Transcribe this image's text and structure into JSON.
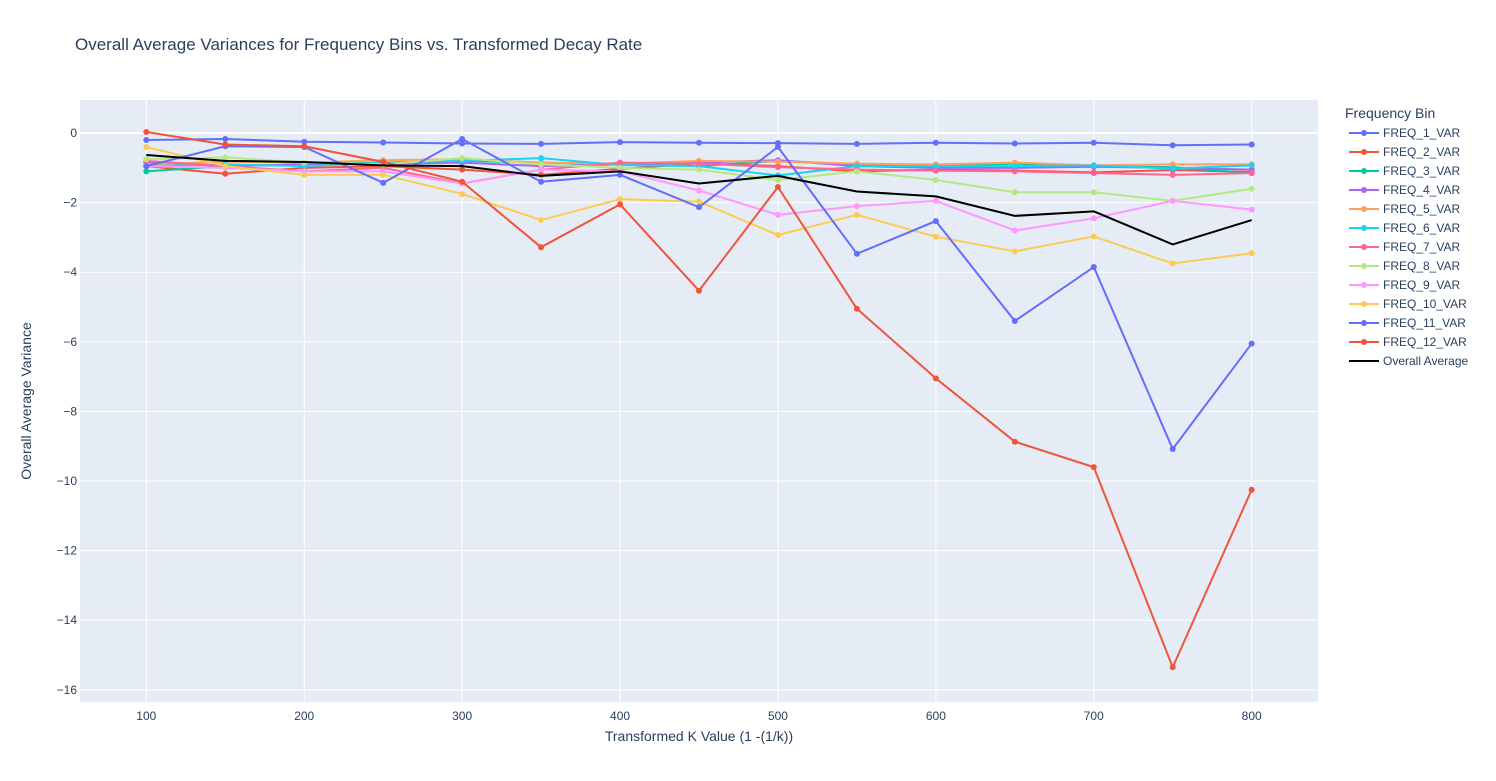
{
  "chart_data": {
    "type": "line",
    "title": "Overall Average Variances for Frequency Bins vs. Transformed Decay Rate",
    "xlabel": "Transformed K Value (1 -(1/k))",
    "ylabel": "Overall Average Variance",
    "xlim": [
      58,
      842
    ],
    "ylim": [
      -16.35,
      0.95
    ],
    "x_ticks": [
      100,
      200,
      300,
      400,
      500,
      600,
      700,
      800
    ],
    "y_ticks": [
      0,
      -2,
      -4,
      -6,
      -8,
      -10,
      -12,
      -14,
      -16
    ],
    "x_tick_labels": [
      "100",
      "200",
      "300",
      "400",
      "500",
      "600",
      "700",
      "800"
    ],
    "y_tick_labels": [
      "0",
      "−2",
      "−4",
      "−6",
      "−8",
      "−10",
      "−12",
      "−14",
      "−16"
    ],
    "grid": true,
    "legend_title": "Frequency Bin",
    "legend_position": "right",
    "x": [
      100,
      150,
      200,
      250,
      300,
      350,
      400,
      450,
      500,
      550,
      600,
      650,
      700,
      750,
      800
    ],
    "series": [
      {
        "name": "FREQ_1_VAR",
        "color": "#636efa",
        "markers": true,
        "values": [
          -0.2,
          -0.17,
          -0.25,
          -0.27,
          -0.3,
          -0.31,
          -0.26,
          -0.28,
          -0.29,
          -0.31,
          -0.28,
          -0.3,
          -0.28,
          -0.35,
          -0.33
        ]
      },
      {
        "name": "FREQ_2_VAR",
        "color": "#ef553b",
        "markers": true,
        "values": [
          -0.95,
          -1.17,
          -1.0,
          -0.95,
          -1.05,
          -1.2,
          -1.03,
          -0.87,
          -0.95,
          -1.1,
          -1.05,
          -1.08,
          -1.13,
          -1.06,
          -1.12
        ]
      },
      {
        "name": "FREQ_3_VAR",
        "color": "#00cc96",
        "markers": true,
        "values": [
          -1.1,
          -0.95,
          -0.9,
          -0.85,
          -0.8,
          -0.85,
          -0.9,
          -0.95,
          -0.8,
          -0.9,
          -0.95,
          -0.88,
          -0.95,
          -0.98,
          -1.15
        ]
      },
      {
        "name": "FREQ_4_VAR",
        "color": "#ab63fa",
        "markers": true,
        "values": [
          -0.85,
          -0.95,
          -0.9,
          -0.88,
          -0.85,
          -0.95,
          -0.9,
          -0.85,
          -0.78,
          -0.95,
          -1.0,
          -1.0,
          -0.97,
          -1.0,
          -1.05
        ]
      },
      {
        "name": "FREQ_5_VAR",
        "color": "#ffa15a",
        "markers": true,
        "values": [
          -0.9,
          -0.82,
          -0.85,
          -0.78,
          -0.75,
          -0.85,
          -0.88,
          -0.8,
          -0.82,
          -0.88,
          -0.9,
          -0.85,
          -0.93,
          -0.9,
          -0.9
        ]
      },
      {
        "name": "FREQ_6_VAR",
        "color": "#19d3f3",
        "markers": true,
        "values": [
          -0.95,
          -0.9,
          -0.95,
          -0.85,
          -0.8,
          -0.72,
          -0.92,
          -0.95,
          -1.22,
          -0.95,
          -0.95,
          -0.95,
          -0.93,
          -1.02,
          -0.93
        ]
      },
      {
        "name": "FREQ_7_VAR",
        "color": "#ff6692",
        "markers": true,
        "values": [
          -0.8,
          -0.95,
          -1.1,
          -1.0,
          -1.45,
          -1.05,
          -0.85,
          -0.88,
          -0.98,
          -1.05,
          -1.08,
          -1.1,
          -1.15,
          -1.2,
          -1.15
        ]
      },
      {
        "name": "FREQ_8_VAR",
        "color": "#b6e880",
        "markers": true,
        "values": [
          -0.75,
          -0.7,
          -0.85,
          -0.9,
          -0.72,
          -0.9,
          -1.0,
          -1.05,
          -1.35,
          -1.1,
          -1.35,
          -1.7,
          -1.7,
          -1.95,
          -1.6
        ]
      },
      {
        "name": "FREQ_9_VAR",
        "color": "#ff97ff",
        "markers": true,
        "values": [
          -0.95,
          -1.0,
          -1.1,
          -1.1,
          -1.45,
          -1.05,
          -1.1,
          -1.65,
          -2.35,
          -2.1,
          -1.95,
          -2.8,
          -2.45,
          -1.95,
          -2.2
        ]
      },
      {
        "name": "FREQ_10_VAR",
        "color": "#fecb52",
        "markers": true,
        "values": [
          -0.4,
          -0.95,
          -1.2,
          -1.2,
          -1.75,
          -2.5,
          -1.9,
          -1.97,
          -2.93,
          -2.35,
          -2.98,
          -3.4,
          -2.97,
          -3.75,
          -3.45
        ]
      },
      {
        "name": "FREQ_11_VAR",
        "color": "#636efa",
        "markers": true,
        "values": [
          -0.95,
          -0.38,
          -0.4,
          -1.43,
          -0.17,
          -1.4,
          -1.2,
          -2.13,
          -0.4,
          -3.47,
          -2.53,
          -5.4,
          -3.85,
          -9.08,
          -6.05
        ]
      },
      {
        "name": "FREQ_12_VAR",
        "color": "#ef553b",
        "markers": true,
        "values": [
          0.03,
          -0.33,
          -0.38,
          -0.83,
          -1.4,
          -3.28,
          -2.05,
          -4.53,
          -1.55,
          -5.05,
          -7.05,
          -8.87,
          -9.6,
          -15.35,
          -10.25
        ]
      },
      {
        "name": "Overall Average",
        "color": "#000000",
        "markers": false,
        "values": [
          -0.63,
          -0.8,
          -0.83,
          -0.93,
          -0.95,
          -1.23,
          -1.1,
          -1.45,
          -1.23,
          -1.68,
          -1.82,
          -2.38,
          -2.25,
          -3.2,
          -2.5
        ]
      }
    ]
  }
}
